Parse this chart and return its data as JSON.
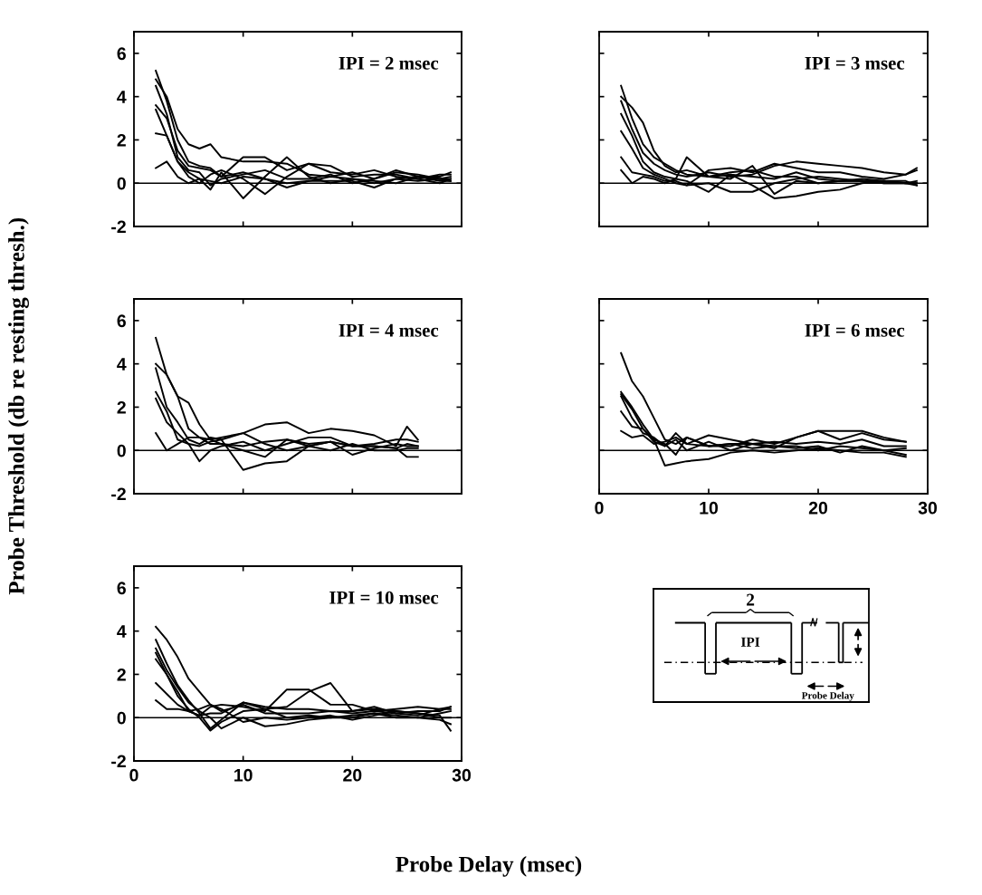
{
  "chart_data": [
    {
      "type": "line",
      "title": "IPI = 2 msec",
      "xlim": [
        0,
        30
      ],
      "ylim": [
        -2,
        7
      ],
      "xticks": [
        0,
        10,
        20,
        30
      ],
      "yticks": [
        -2,
        0,
        2,
        4,
        6
      ],
      "tick_labels": "y",
      "x": [
        2,
        3,
        4,
        5,
        6,
        7,
        8,
        10,
        12,
        14,
        16,
        18,
        20,
        22,
        24,
        26,
        28,
        29
      ],
      "ref_lines": [
        {
          "axis": "y",
          "value": 0,
          "color": "#000000"
        }
      ],
      "series": [
        {
          "color": "#000000",
          "values": [
            5.2,
            3.8,
            2.0,
            1.0,
            0.8,
            0.7,
            0.3,
            0.5,
            0.2,
            -0.2,
            0.1,
            0.3,
            0.2,
            0.0,
            0.2,
            0.3,
            0.2,
            0.3
          ]
        },
        {
          "color": "#000000",
          "values": [
            4.8,
            4.0,
            2.5,
            1.8,
            1.6,
            1.8,
            1.2,
            1.0,
            1.0,
            0.9,
            0.4,
            0.3,
            0.5,
            0.2,
            0.6,
            0.3,
            0.3,
            0.5
          ]
        },
        {
          "color": "#000000",
          "values": [
            3.6,
            3.0,
            1.5,
            0.8,
            0.7,
            0.6,
            0.3,
            1.2,
            1.2,
            0.6,
            0.9,
            0.5,
            0.4,
            0.6,
            0.3,
            0.2,
            0.4,
            0.4
          ]
        },
        {
          "color": "#000000",
          "values": [
            3.4,
            2.2,
            1.0,
            0.5,
            0.2,
            -0.3,
            0.5,
            -0.7,
            0.3,
            1.2,
            0.3,
            0.0,
            0.2,
            0.1,
            0.0,
            0.3,
            0.1,
            0.1
          ]
        },
        {
          "color": "#000000",
          "values": [
            2.3,
            2.2,
            1.0,
            0.3,
            0.0,
            0.4,
            0.6,
            0.2,
            -0.5,
            0.3,
            0.9,
            0.8,
            0.3,
            0.4,
            0.4,
            0.2,
            0.0,
            0.2
          ]
        },
        {
          "color": "#000000",
          "values": [
            0.7,
            1.0,
            0.3,
            0.0,
            0.2,
            0.1,
            0.0,
            0.3,
            0.2,
            0.0,
            0.1,
            0.1,
            0.1,
            -0.2,
            0.2,
            0.1,
            0.2,
            0.1
          ]
        },
        {
          "color": "#000000",
          "values": [
            4.5,
            3.2,
            1.2,
            0.6,
            0.5,
            -0.1,
            0.2,
            0.4,
            0.6,
            0.2,
            0.2,
            0.4,
            0.0,
            0.2,
            0.5,
            0.4,
            0.2,
            0.2
          ]
        }
      ]
    },
    {
      "type": "line",
      "title": "IPI = 3 msec",
      "xlim": [
        0,
        30
      ],
      "ylim": [
        -2,
        7
      ],
      "xticks": [
        0,
        10,
        20,
        30
      ],
      "yticks": [
        -2,
        0,
        2,
        4,
        6
      ],
      "tick_labels": false,
      "x": [
        2,
        3,
        4,
        5,
        6,
        7,
        8,
        10,
        12,
        14,
        16,
        18,
        20,
        22,
        24,
        26,
        28,
        29
      ],
      "ref_lines": [
        {
          "axis": "y",
          "value": 0,
          "color": "#000000"
        }
      ],
      "series": [
        {
          "color": "#000000",
          "values": [
            4.5,
            3.0,
            1.8,
            1.2,
            0.9,
            0.6,
            0.4,
            0.3,
            0.5,
            0.6,
            0.3,
            0.3,
            0.0,
            0.1,
            0.1,
            0.0,
            0.0,
            -0.1
          ]
        },
        {
          "color": "#000000",
          "values": [
            4.0,
            3.5,
            2.8,
            1.5,
            0.8,
            0.5,
            0.6,
            0.3,
            0.4,
            0.3,
            0.2,
            0.5,
            0.2,
            0.1,
            0.1,
            0.0,
            0.0,
            0.0
          ]
        },
        {
          "color": "#000000",
          "values": [
            3.2,
            2.2,
            1.0,
            0.5,
            0.3,
            0.2,
            1.2,
            0.3,
            0.2,
            0.8,
            -0.5,
            0.1,
            0.0,
            0.1,
            0.2,
            0.1,
            0.1,
            -0.1
          ]
        },
        {
          "color": "#000000",
          "values": [
            2.4,
            1.6,
            0.7,
            0.4,
            0.2,
            0.0,
            -0.1,
            0.6,
            0.7,
            0.5,
            0.9,
            0.7,
            0.5,
            0.5,
            0.3,
            0.2,
            0.4,
            0.6
          ]
        },
        {
          "color": "#000000",
          "values": [
            1.2,
            0.5,
            0.4,
            0.3,
            0.1,
            0.1,
            -0.1,
            0.0,
            -0.4,
            -0.4,
            0.0,
            0.2,
            0.3,
            0.2,
            0.1,
            0.1,
            0.0,
            0.0
          ]
        },
        {
          "color": "#000000",
          "values": [
            0.6,
            0.0,
            0.3,
            0.2,
            0.0,
            0.2,
            0.1,
            -0.4,
            0.4,
            -0.1,
            -0.7,
            -0.6,
            -0.4,
            -0.3,
            0.0,
            0.1,
            0.0,
            0.1
          ]
        },
        {
          "color": "#000000",
          "values": [
            3.8,
            2.5,
            1.4,
            0.9,
            0.6,
            0.4,
            0.3,
            0.5,
            0.3,
            0.4,
            0.8,
            1.0,
            0.9,
            0.8,
            0.7,
            0.5,
            0.4,
            0.7
          ]
        }
      ]
    },
    {
      "type": "line",
      "title": "IPI = 4 msec",
      "ylabel": "Probe Threshold (db re resting thresh.)",
      "xlim": [
        0,
        30
      ],
      "ylim": [
        -2,
        7
      ],
      "xticks": [
        0,
        10,
        20,
        30
      ],
      "yticks": [
        -2,
        0,
        2,
        4,
        6
      ],
      "tick_labels": "y",
      "x": [
        2,
        3,
        4,
        5,
        6,
        7,
        8,
        10,
        12,
        14,
        16,
        18,
        20,
        22,
        24,
        25,
        26
      ],
      "ref_lines": [
        {
          "axis": "y",
          "value": 0,
          "color": "#000000"
        }
      ],
      "series": [
        {
          "color": "#000000",
          "values": [
            5.2,
            3.5,
            2.5,
            2.2,
            1.2,
            0.5,
            0.3,
            0.2,
            0.4,
            0.5,
            0.3,
            0.4,
            0.2,
            0.2,
            0.1,
            -0.3,
            -0.3
          ]
        },
        {
          "color": "#000000",
          "values": [
            4.0,
            3.5,
            2.5,
            1.0,
            0.6,
            0.5,
            0.6,
            0.8,
            1.2,
            1.3,
            0.8,
            1.0,
            0.9,
            0.7,
            0.2,
            1.1,
            0.5
          ]
        },
        {
          "color": "#000000",
          "values": [
            3.8,
            2.0,
            1.3,
            0.5,
            0.3,
            0.6,
            0.5,
            -0.9,
            -0.6,
            -0.5,
            0.2,
            0.4,
            0.2,
            0.3,
            0.5,
            0.5,
            0.4
          ]
        },
        {
          "color": "#000000",
          "values": [
            2.7,
            1.8,
            0.5,
            0.3,
            0.2,
            0.4,
            0.5,
            0.8,
            0.3,
            0.0,
            0.2,
            0.4,
            -0.2,
            0.1,
            0.3,
            0.2,
            0.2
          ]
        },
        {
          "color": "#000000",
          "values": [
            2.4,
            1.3,
            0.8,
            0.3,
            -0.5,
            0.0,
            0.2,
            0.4,
            0.0,
            0.3,
            0.6,
            0.6,
            0.2,
            0.2,
            0.1,
            0.3,
            0.2
          ]
        },
        {
          "color": "#000000",
          "values": [
            0.8,
            0.0,
            0.3,
            0.6,
            0.6,
            0.3,
            0.3,
            0.0,
            -0.3,
            0.5,
            0.2,
            0.0,
            0.3,
            0.0,
            0.0,
            0.1,
            0.1
          ]
        }
      ]
    },
    {
      "type": "line",
      "title": "IPI = 6 msec",
      "xlim": [
        0,
        30
      ],
      "ylim": [
        -2,
        7
      ],
      "xticks": [
        0,
        10,
        20,
        30
      ],
      "yticks": [
        -2,
        0,
        2,
        4,
        6
      ],
      "tick_labels": "x",
      "x": [
        2,
        3,
        4,
        5,
        6,
        7,
        8,
        10,
        12,
        14,
        16,
        18,
        20,
        22,
        24,
        26,
        28
      ],
      "ref_lines": [
        {
          "axis": "y",
          "value": 0,
          "color": "#000000"
        }
      ],
      "series": [
        {
          "color": "#000000",
          "values": [
            4.5,
            3.2,
            2.5,
            1.5,
            0.5,
            0.3,
            0.6,
            0.2,
            0.3,
            0.3,
            0.1,
            0.6,
            0.9,
            0.5,
            0.8,
            0.5,
            0.4
          ]
        },
        {
          "color": "#000000",
          "values": [
            2.7,
            2.0,
            1.2,
            0.5,
            -0.7,
            -0.6,
            -0.5,
            -0.4,
            -0.1,
            0.0,
            -0.1,
            0.0,
            0.1,
            0.0,
            -0.1,
            -0.1,
            -0.3
          ]
        },
        {
          "color": "#000000",
          "values": [
            2.5,
            1.5,
            0.8,
            0.6,
            0.2,
            0.8,
            0.3,
            0.2,
            0.2,
            0.5,
            0.3,
            0.6,
            0.9,
            0.9,
            0.9,
            0.6,
            0.4
          ]
        },
        {
          "color": "#000000",
          "values": [
            1.8,
            1.1,
            1.0,
            0.5,
            0.3,
            -0.2,
            0.6,
            0.2,
            0.3,
            0.1,
            0.2,
            0.2,
            0.0,
            0.2,
            0.1,
            0.0,
            -0.2
          ]
        },
        {
          "color": "#000000",
          "values": [
            0.9,
            0.6,
            0.7,
            0.3,
            0.4,
            0.6,
            0.3,
            0.7,
            0.5,
            0.3,
            0.4,
            0.3,
            0.4,
            0.3,
            0.5,
            0.2,
            0.2
          ]
        },
        {
          "color": "#000000",
          "values": [
            2.6,
            1.9,
            1.0,
            0.4,
            0.2,
            0.5,
            0.0,
            0.4,
            0.0,
            0.3,
            0.2,
            0.1,
            0.2,
            -0.1,
            0.2,
            0.0,
            0.1
          ]
        }
      ]
    },
    {
      "type": "line",
      "title": "IPI = 10 msec",
      "xlabel": "Probe Delay (msec)",
      "xlim": [
        0,
        30
      ],
      "ylim": [
        -2,
        7
      ],
      "xticks": [
        0,
        10,
        20,
        30
      ],
      "yticks": [
        -2,
        0,
        2,
        4,
        6
      ],
      "x": [
        2,
        3,
        4,
        5,
        6,
        7,
        8,
        10,
        12,
        14,
        16,
        18,
        20,
        22,
        24,
        26,
        28,
        29
      ],
      "ref_lines": [
        {
          "axis": "y",
          "value": 0,
          "color": "#000000"
        }
      ],
      "series": [
        {
          "color": "#000000",
          "values": [
            4.2,
            3.6,
            2.8,
            1.8,
            1.2,
            0.6,
            0.3,
            0.6,
            0.2,
            0.2,
            0.2,
            0.3,
            0.2,
            0.3,
            0.2,
            0.1,
            0.4,
            0.5
          ]
        },
        {
          "color": "#000000",
          "values": [
            3.6,
            2.5,
            1.5,
            0.8,
            0.2,
            -0.5,
            -0.1,
            0.7,
            0.5,
            0.4,
            0.4,
            0.3,
            0.3,
            0.4,
            0.3,
            0.2,
            0.1,
            -0.6
          ]
        },
        {
          "color": "#000000",
          "values": [
            3.2,
            2.2,
            1.4,
            0.7,
            0.3,
            0.0,
            -0.5,
            0.0,
            -0.4,
            -0.3,
            -0.1,
            0.0,
            0.1,
            0.2,
            0.0,
            0.0,
            -0.1,
            -0.3
          ]
        },
        {
          "color": "#000000",
          "values": [
            2.7,
            2.0,
            1.2,
            0.3,
            0.1,
            0.5,
            0.6,
            0.5,
            0.3,
            1.3,
            1.3,
            0.6,
            0.6,
            0.3,
            0.4,
            0.5,
            0.4,
            0.4
          ]
        },
        {
          "color": "#000000",
          "values": [
            1.6,
            1.1,
            0.6,
            0.3,
            0.1,
            0.2,
            0.2,
            0.7,
            0.4,
            0.5,
            1.2,
            1.6,
            0.3,
            0.5,
            0.2,
            0.3,
            0.3,
            0.5
          ]
        },
        {
          "color": "#000000",
          "values": [
            0.8,
            0.4,
            0.4,
            0.3,
            0.4,
            0.6,
            0.4,
            -0.2,
            0.0,
            -0.1,
            0.0,
            0.1,
            -0.1,
            0.1,
            0.3,
            0.2,
            0.0,
            0.0
          ]
        },
        {
          "color": "#000000",
          "values": [
            3.0,
            2.0,
            1.0,
            0.4,
            0.0,
            -0.6,
            -0.2,
            0.3,
            0.4,
            0.0,
            0.1,
            0.0,
            0.0,
            0.2,
            0.1,
            0.0,
            0.2,
            0.3
          ]
        }
      ]
    },
    {
      "type": "other",
      "annotations": [
        "2",
        "IPI",
        "Probe Delay"
      ]
    }
  ]
}
